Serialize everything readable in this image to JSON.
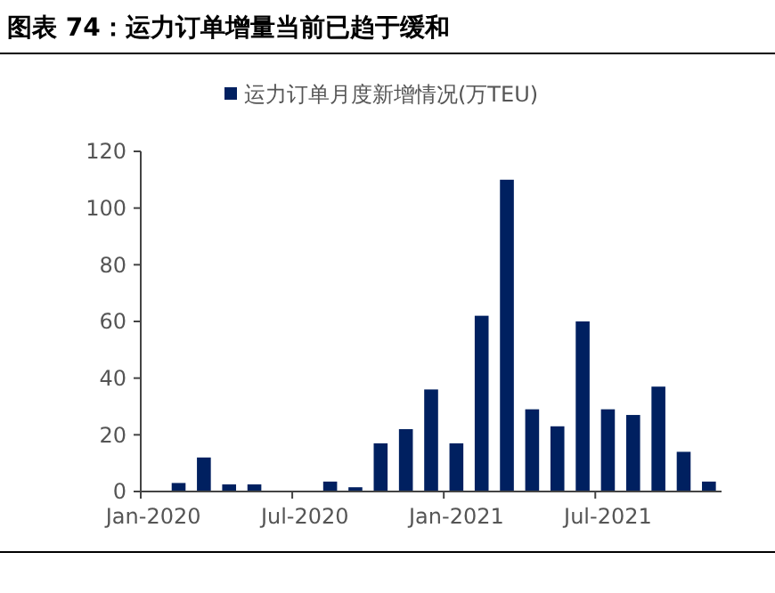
{
  "chart_data": {
    "type": "bar",
    "title": "图表 74：运力订单增量当前已趋于缓和",
    "categories": [
      "Jan-2020",
      null,
      null,
      null,
      null,
      null,
      "Jul-2020",
      null,
      null,
      null,
      null,
      null,
      "Jan-2021",
      null,
      null,
      null,
      null,
      null,
      "Jul-2021",
      null,
      null,
      null,
      null
    ],
    "series": [
      {
        "name": "运力订单月度新增情况(万TEU)",
        "color": "#002060",
        "values": [
          0,
          3,
          12,
          2.5,
          2.5,
          0,
          0,
          3.5,
          1.5,
          17,
          22,
          36,
          17,
          62,
          110,
          29,
          23,
          60,
          29,
          27,
          37,
          14,
          3.5
        ]
      }
    ],
    "ylim": [
      0,
      120
    ],
    "yticks": [
      0,
      20,
      40,
      60,
      80,
      100,
      120
    ],
    "grid": false,
    "legend": "top"
  }
}
